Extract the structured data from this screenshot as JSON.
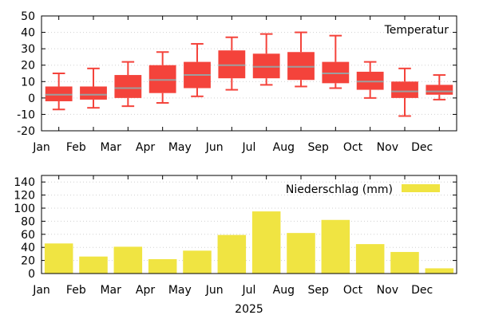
{
  "chart_data": [
    {
      "type": "box",
      "categories": [
        "Jan",
        "Feb",
        "Mar",
        "Apr",
        "May",
        "Jun",
        "Jul",
        "Aug",
        "Sep",
        "Oct",
        "Nov",
        "Dec"
      ],
      "series": [
        {
          "name": "Temperatur",
          "color": "#f4433b",
          "median_color": "#9e9e9e",
          "whisker_low": [
            -7,
            -6,
            -5,
            -3,
            1,
            5,
            8,
            7,
            6,
            0,
            -11,
            -1
          ],
          "q1": [
            -2,
            -1,
            0,
            3,
            6,
            12,
            12,
            11,
            9,
            5,
            0,
            2
          ],
          "median": [
            2,
            2,
            6,
            11,
            14,
            20,
            19,
            19,
            15,
            10,
            4,
            4
          ],
          "q3": [
            7,
            7,
            14,
            20,
            22,
            29,
            27,
            28,
            22,
            16,
            10,
            8
          ],
          "whisker_high": [
            15,
            18,
            22,
            28,
            33,
            37,
            39,
            40,
            38,
            22,
            18,
            14
          ]
        }
      ],
      "ylim": [
        -20,
        50
      ],
      "yticks": [
        -20,
        -10,
        0,
        10,
        20,
        30,
        40,
        50
      ],
      "grid": true,
      "legend": "top-right"
    },
    {
      "type": "bar",
      "categories": [
        "Jan",
        "Feb",
        "Mar",
        "Apr",
        "May",
        "Jun",
        "Jul",
        "Aug",
        "Sep",
        "Oct",
        "Nov",
        "Dec"
      ],
      "series": [
        {
          "name": "Niederschlag (mm)",
          "color": "#f0e442",
          "values": [
            46,
            26,
            41,
            22,
            35,
            59,
            95,
            62,
            82,
            45,
            33,
            8
          ]
        }
      ],
      "ylim": [
        0,
        150
      ],
      "yticks": [
        0,
        20,
        40,
        60,
        80,
        100,
        120,
        140
      ],
      "xlabel": "2025",
      "grid": true,
      "legend": "top-right"
    }
  ]
}
